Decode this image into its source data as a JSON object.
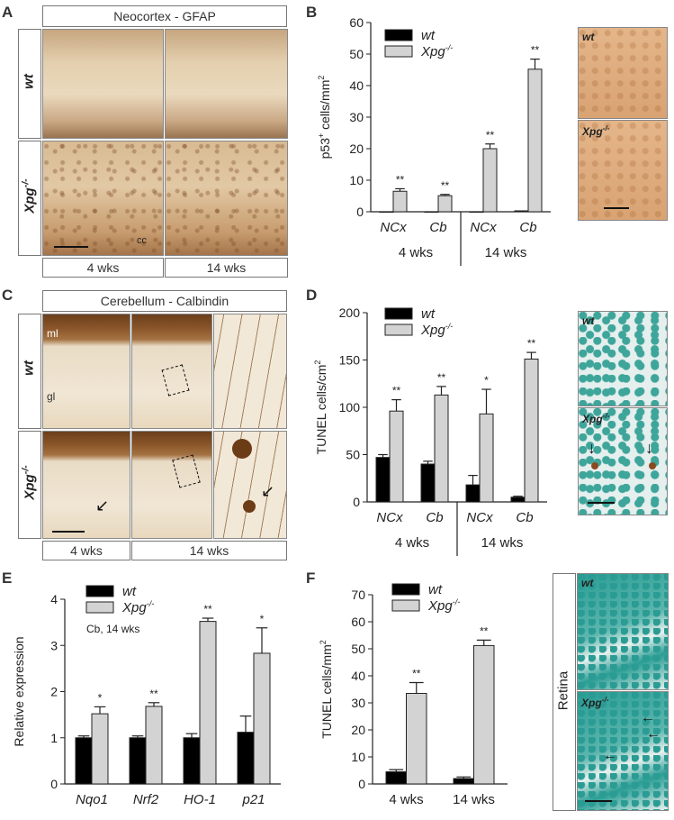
{
  "panels": {
    "A": {
      "letter": "A",
      "title": "Neocortex - GFAP",
      "rows": [
        "wt",
        "Xpg-/-"
      ],
      "cols": [
        "4 wks",
        "14 wks"
      ],
      "annotation": "cc"
    },
    "B": {
      "letter": "B",
      "inset_labels": [
        "wt",
        "Xpg-/-"
      ]
    },
    "C": {
      "letter": "C",
      "title": "Cerebellum - Calbindin",
      "rows": [
        "wt",
        "Xpg-/-"
      ],
      "cols": [
        "4 wks",
        "14 wks"
      ],
      "layer_labels": [
        "ml",
        "gl"
      ]
    },
    "D": {
      "letter": "D",
      "inset_labels": [
        "wt",
        "Xpg-/-"
      ]
    },
    "E": {
      "letter": "E"
    },
    "F": {
      "letter": "F",
      "inset_labels": [
        "wt",
        "Xpg-/-"
      ],
      "side_label": "Retina"
    }
  },
  "colors": {
    "wt": "#000000",
    "xpg": "#d3d3d3"
  },
  "chart_data": [
    {
      "id": "B",
      "type": "bar",
      "ylabel": "p53+ cells/mm2",
      "ylim": [
        0,
        60
      ],
      "yticks": [
        0,
        10,
        20,
        30,
        40,
        50,
        60
      ],
      "categories": [
        "NCx",
        "Cb",
        "NCx",
        "Cb"
      ],
      "groups": [
        {
          "label": "4 wks",
          "span": [
            0,
            1
          ]
        },
        {
          "label": "14 wks",
          "span": [
            2,
            3
          ]
        }
      ],
      "series": [
        {
          "name": "wt",
          "values": [
            0,
            0,
            0,
            0.3
          ],
          "errors": [
            0,
            0,
            0,
            0
          ]
        },
        {
          "name": "Xpg-/-",
          "values": [
            6.5,
            5.1,
            20,
            45.2
          ],
          "errors": [
            0.8,
            0.4,
            1.5,
            3.2
          ]
        }
      ],
      "significance": [
        "**",
        "**",
        "**",
        "**"
      ]
    },
    {
      "id": "D",
      "type": "bar",
      "ylabel": "TUNEL cells/cm2",
      "ylim": [
        0,
        200
      ],
      "yticks": [
        0,
        50,
        100,
        150,
        200
      ],
      "categories": [
        "NCx",
        "Cb",
        "NCx",
        "Cb"
      ],
      "groups": [
        {
          "label": "4 wks",
          "span": [
            0,
            1
          ]
        },
        {
          "label": "14 wks",
          "span": [
            2,
            3
          ]
        }
      ],
      "series": [
        {
          "name": "wt",
          "values": [
            47,
            40,
            18,
            5
          ],
          "errors": [
            3,
            3,
            10,
            1
          ]
        },
        {
          "name": "Xpg-/-",
          "values": [
            96,
            113,
            93,
            151
          ],
          "errors": [
            12,
            9,
            26,
            7
          ]
        }
      ],
      "significance": [
        "**",
        "**",
        "*",
        "**"
      ]
    },
    {
      "id": "E",
      "type": "bar",
      "ylabel": "Relative expression",
      "ylim": [
        0,
        4
      ],
      "yticks": [
        0,
        1,
        2,
        3,
        4
      ],
      "annotation": "Cb, 14 wks",
      "categories": [
        "Nqo1",
        "Nrf2",
        "HO-1",
        "p21"
      ],
      "series": [
        {
          "name": "wt",
          "values": [
            1.0,
            1.0,
            1.0,
            1.12
          ],
          "errors": [
            0.04,
            0.04,
            0.09,
            0.35
          ]
        },
        {
          "name": "Xpg-/-",
          "values": [
            1.52,
            1.68,
            3.52,
            2.83
          ],
          "errors": [
            0.15,
            0.08,
            0.07,
            0.55
          ]
        }
      ],
      "significance": [
        "*",
        "**",
        "**",
        "*"
      ]
    },
    {
      "id": "F",
      "type": "bar",
      "ylabel": "TUNEL cells/mm2",
      "ylim": [
        0,
        70
      ],
      "yticks": [
        0,
        10,
        20,
        30,
        40,
        50,
        60,
        70
      ],
      "categories": [
        "4 wks",
        "14 wks"
      ],
      "series": [
        {
          "name": "wt",
          "values": [
            4.5,
            2.0
          ],
          "errors": [
            0.8,
            0.6
          ]
        },
        {
          "name": "Xpg-/-",
          "values": [
            33.5,
            51.2
          ],
          "errors": [
            4.0,
            2.0
          ]
        }
      ],
      "significance": [
        "**",
        "**"
      ]
    }
  ]
}
